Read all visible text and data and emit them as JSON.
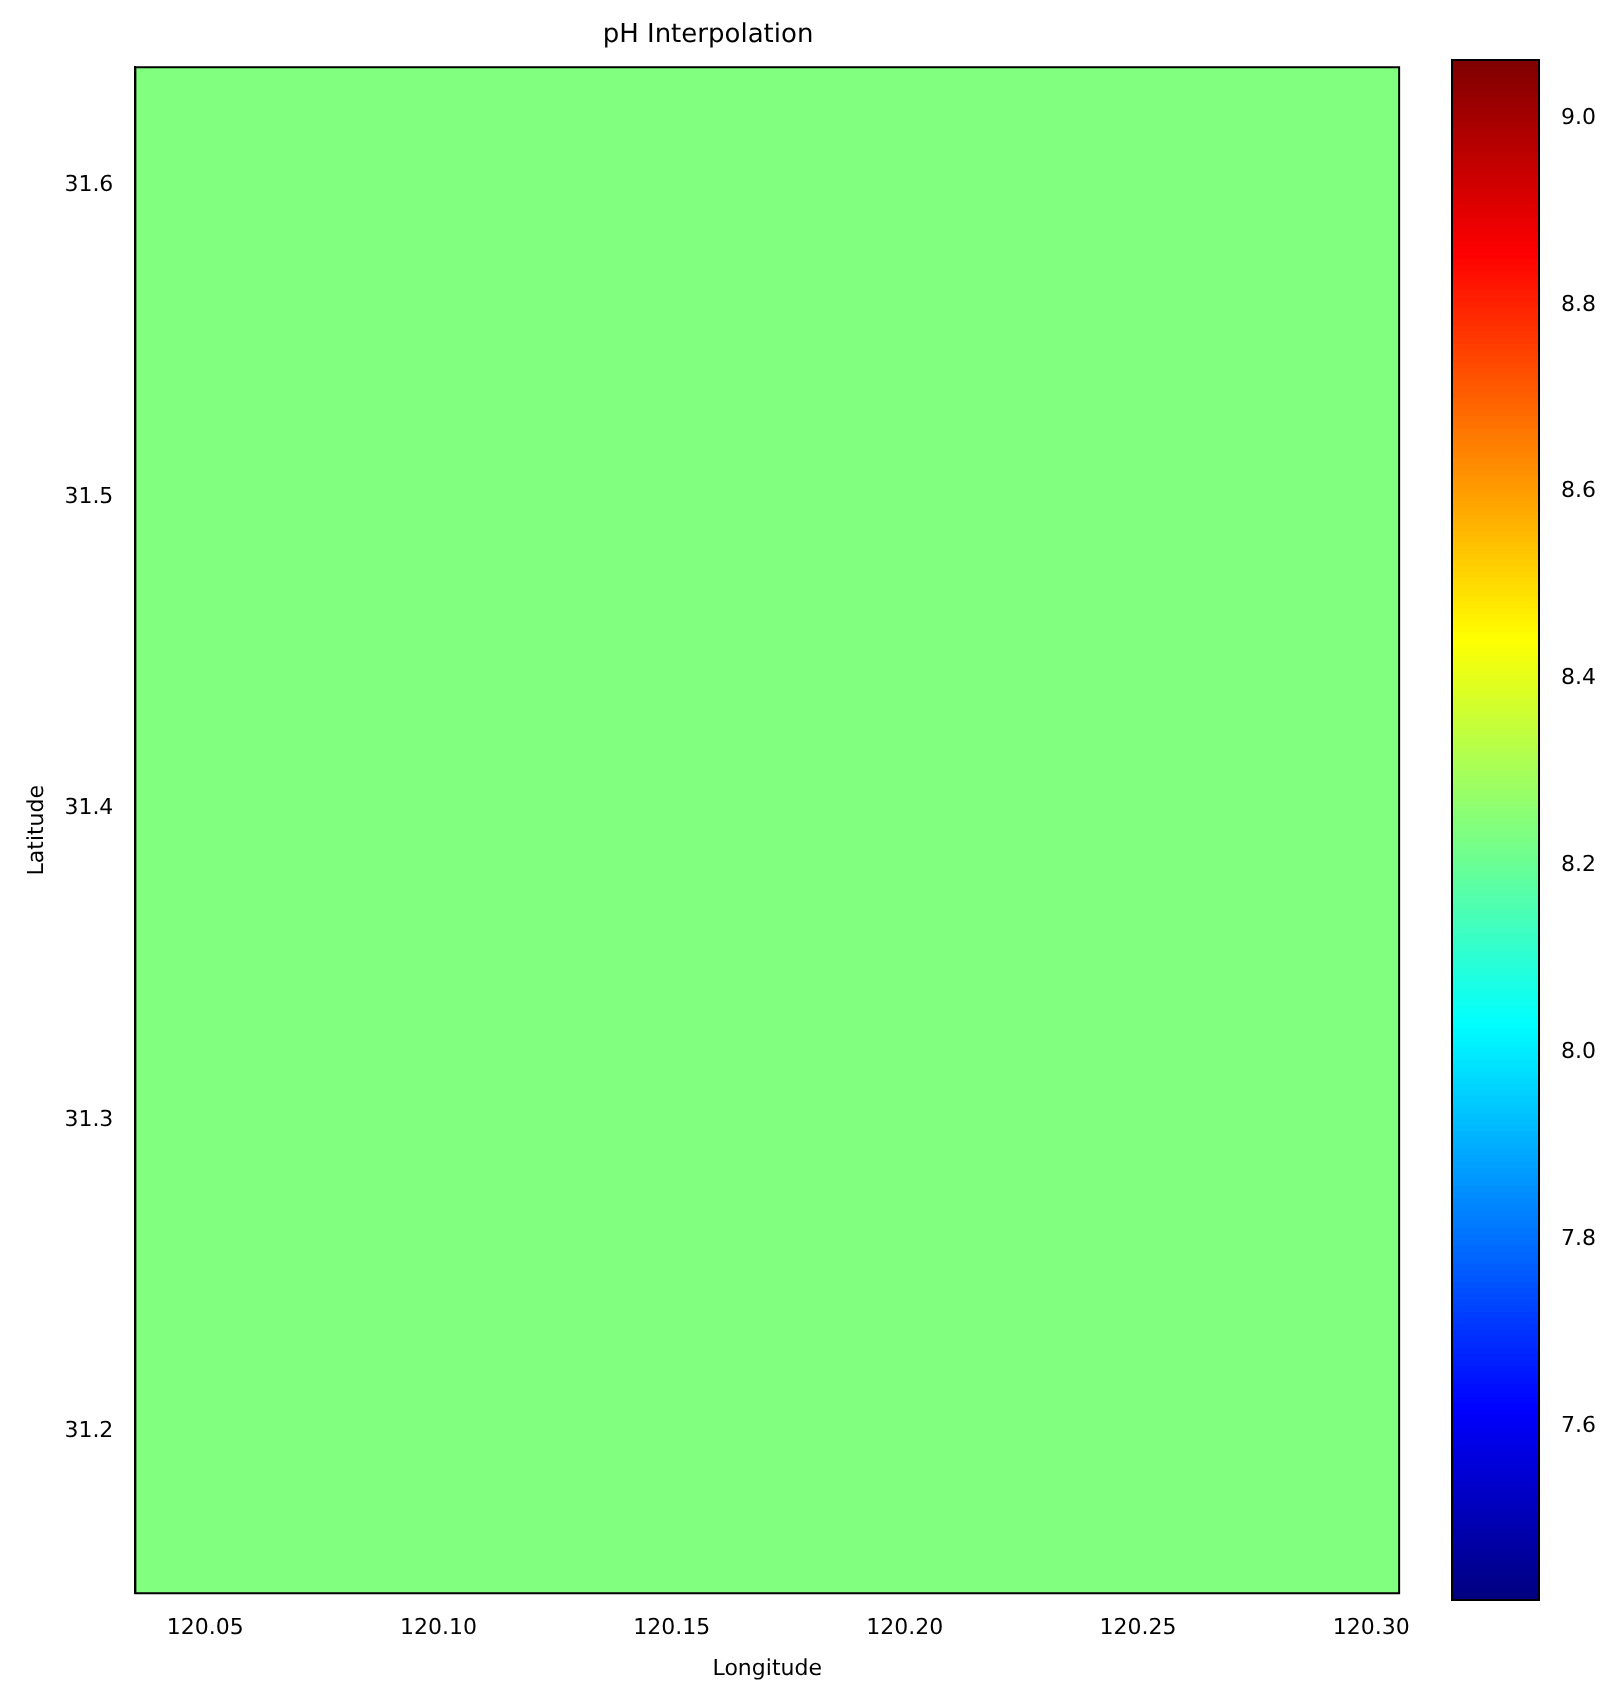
{
  "chart_data": {
    "type": "heatmap",
    "title": "pH Interpolation",
    "xlabel": "Longitude",
    "ylabel": "Latitude",
    "cells": [
      [
        8.24
      ]
    ],
    "xlim": [
      120.035,
      120.306
    ],
    "xticks": [
      120.05,
      {
        "value": 120.1,
        "label": "120.10"
      },
      120.15,
      {
        "value": 120.2,
        "label": "120.20"
      },
      120.25,
      {
        "value": 120.3,
        "label": "120.30"
      }
    ],
    "ylim": [
      31.148,
      31.638
    ],
    "yticks": [
      31.2,
      31.3,
      31.4,
      31.5,
      31.6
    ],
    "clim": [
      7.414,
      9.062
    ],
    "cticks": [
      7.6,
      7.8,
      {
        "value": 8,
        "label": "8.0"
      },
      8.2,
      8.4,
      8.6,
      8.8,
      {
        "value": 9,
        "label": "9.0"
      }
    ],
    "grid": false
  }
}
